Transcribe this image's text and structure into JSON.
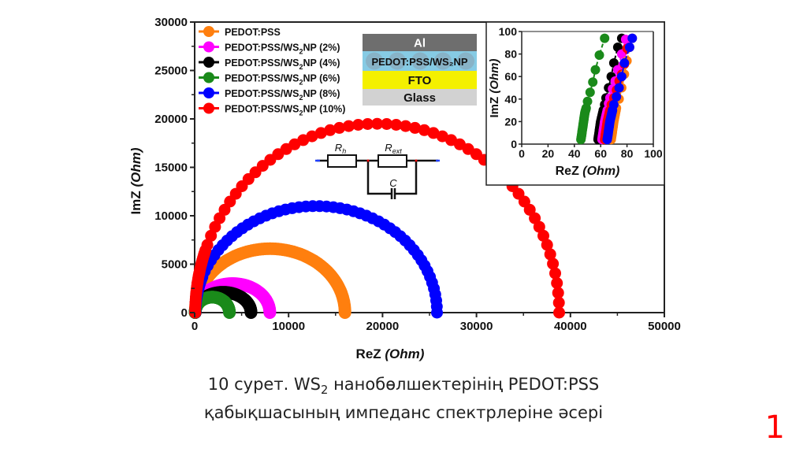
{
  "caption": {
    "line1_prefix": "10 сурет. WS",
    "line1_sub": "2",
    "line1_suffix": " нанобөлшектерінің PEDOT:PSS",
    "line2": "қабықшасының импеданс спектрлеріне әсері"
  },
  "page_number": "1",
  "device_stack": {
    "layers": [
      {
        "label": "Al",
        "color": "#6e6e6e",
        "text_color": "#ffffff"
      },
      {
        "label": "PEDOT:PSS/WS₂NP",
        "color": "#86cbe4",
        "text_color": "#111111"
      },
      {
        "label": "FTO",
        "color": "#f4f000",
        "text_color": "#111111"
      },
      {
        "label": "Glass",
        "color": "#d2d2d2",
        "text_color": "#111111"
      }
    ]
  },
  "circuit": {
    "labels": {
      "rh": "R",
      "rh_sub": "h",
      "rext": "R",
      "rext_sub": "ext",
      "c": "C"
    }
  },
  "chart_data": [
    {
      "type": "scatter",
      "name": "main-nyquist",
      "xlabel": "ReZ",
      "xlabel_unit": "(Ohm)",
      "ylabel": "ImZ",
      "ylabel_unit": "(Ohm)",
      "xlim": [
        0,
        50000
      ],
      "ylim": [
        0,
        30000
      ],
      "xticks": [
        0,
        10000,
        20000,
        30000,
        40000,
        50000
      ],
      "yticks": [
        0,
        5000,
        10000,
        15000,
        20000,
        25000,
        30000
      ],
      "grid": false,
      "legend_position": "top-left",
      "series": [
        {
          "name": "PEDOT:PSS",
          "color": "#ff7f0e",
          "r_start": 60,
          "r_end": 16000,
          "peak": 6600
        },
        {
          "name": "PEDOT:PSS/WS2NP (2%)",
          "color": "#ff00ff",
          "r_start": 60,
          "r_end": 8000,
          "peak": 3000
        },
        {
          "name": "PEDOT:PSS/WS2NP (4%)",
          "color": "#000000",
          "r_start": 60,
          "r_end": 6000,
          "peak": 2100
        },
        {
          "name": "PEDOT:PSS/WS2NP (6%)",
          "color": "#1a8a1a",
          "r_start": 45,
          "r_end": 3700,
          "peak": 1600
        },
        {
          "name": "PEDOT:PSS/WS2NP (8%)",
          "color": "#0000ff",
          "r_start": 70,
          "r_end": 25800,
          "peak": 11000
        },
        {
          "name": "PEDOT:PSS/WS2NP (10%)",
          "color": "#ff0000",
          "r_start": 60,
          "r_end": 38800,
          "peak": 19500
        }
      ]
    },
    {
      "type": "scatter",
      "name": "inset-high-frequency",
      "xlabel": "ReZ",
      "xlabel_unit": "(Ohm)",
      "ylabel": "ImZ",
      "ylabel_unit": "(Ohm)",
      "xlim": [
        0,
        100
      ],
      "ylim": [
        0,
        100
      ],
      "xticks": [
        0,
        20,
        40,
        60,
        80,
        100
      ],
      "yticks": [
        0,
        20,
        40,
        60,
        80,
        100
      ],
      "grid": false,
      "series": [
        {
          "name": "PEDOT:PSS/WS2NP (6%)",
          "color": "#1a8a1a",
          "points": [
            [
              45,
              4
            ],
            [
              45.5,
              8
            ],
            [
              46,
              12
            ],
            [
              46.5,
              16
            ],
            [
              47,
              20
            ],
            [
              47.5,
              24
            ],
            [
              48,
              28
            ],
            [
              49,
              32
            ],
            [
              50,
              38
            ],
            [
              52,
              46
            ],
            [
              54,
              55
            ],
            [
              56,
              66
            ],
            [
              59,
              79
            ],
            [
              63,
              94
            ]
          ]
        },
        {
          "name": "PEDOT:PSS/WS2NP (4%)",
          "color": "#000000",
          "points": [
            [
              58,
              4
            ],
            [
              58.5,
              8
            ],
            [
              59,
              12
            ],
            [
              59.5,
              16
            ],
            [
              60,
              20
            ],
            [
              61,
              25
            ],
            [
              62,
              30
            ],
            [
              63,
              35
            ],
            [
              64,
              41
            ],
            [
              66,
              50
            ],
            [
              68,
              60
            ],
            [
              70,
              72
            ],
            [
              73,
              86
            ],
            [
              76,
              94
            ]
          ]
        },
        {
          "name": "PEDOT:PSS/WS2NP (2%)",
          "color": "#ff00ff",
          "points": [
            [
              61,
              4
            ],
            [
              61.5,
              8
            ],
            [
              62,
              12
            ],
            [
              62.5,
              16
            ],
            [
              63,
              20
            ],
            [
              64,
              25
            ],
            [
              65,
              30
            ],
            [
              66,
              36
            ],
            [
              67,
              41
            ],
            [
              69,
              49
            ],
            [
              71,
              56
            ],
            [
              73,
              66
            ],
            [
              76,
              80
            ],
            [
              79,
              93
            ]
          ]
        },
        {
          "name": "PEDOT:PSS/WS2NP (10%)",
          "color": "#ff0000",
          "points": [
            [
              63,
              4
            ],
            [
              63.5,
              8
            ],
            [
              64,
              12
            ],
            [
              64.5,
              16
            ],
            [
              65,
              20
            ],
            [
              66,
              25
            ],
            [
              67,
              30
            ],
            [
              68,
              35
            ],
            [
              70,
              41
            ],
            [
              72,
              48
            ],
            [
              74,
              56
            ],
            [
              76,
              62
            ],
            [
              78,
              71
            ],
            [
              80,
              85
            ]
          ]
        },
        {
          "name": "PEDOT:PSS",
          "color": "#ff7f0e",
          "points": [
            [
              68,
              4
            ],
            [
              68.5,
              8
            ],
            [
              69,
              12
            ],
            [
              69.5,
              16
            ],
            [
              70,
              20
            ],
            [
              71,
              26
            ],
            [
              72,
              32
            ],
            [
              74,
              40
            ],
            [
              76,
              50
            ],
            [
              78,
              62
            ],
            [
              80,
              74
            ],
            [
              82,
              86
            ],
            [
              84,
              94
            ]
          ]
        },
        {
          "name": "PEDOT:PSS/WS2NP (8%)",
          "color": "#0000ff",
          "points": [
            [
              65,
              4
            ],
            [
              65.5,
              8
            ],
            [
              66,
              12
            ],
            [
              66.5,
              16
            ],
            [
              67,
              20
            ],
            [
              68,
              25
            ],
            [
              69,
              30
            ],
            [
              70,
              35
            ],
            [
              72,
              42
            ],
            [
              74,
              50
            ],
            [
              76,
              60
            ],
            [
              78,
              72
            ],
            [
              82,
              86
            ],
            [
              84,
              94
            ]
          ]
        }
      ]
    }
  ]
}
